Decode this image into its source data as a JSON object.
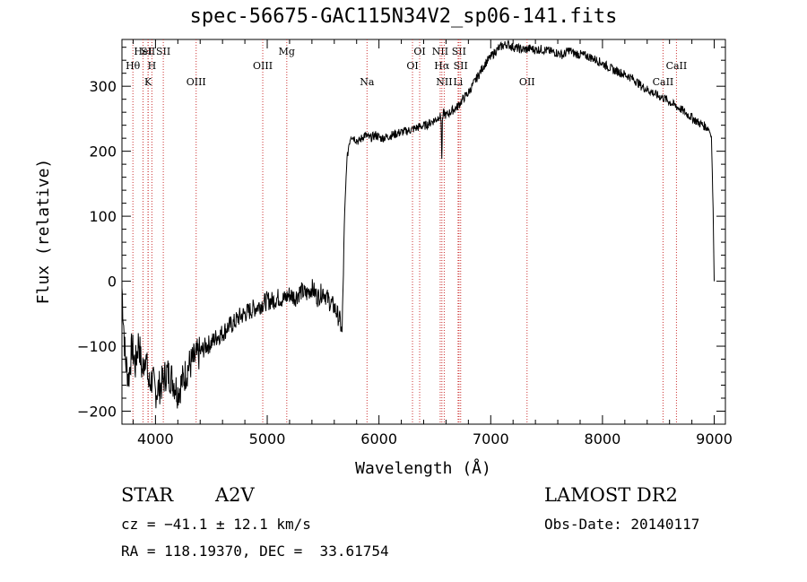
{
  "chart_data": {
    "type": "line",
    "title": "spec-56675-GAC115N34V2_sp06-141.fits",
    "xlabel": "Wavelength (Å)",
    "ylabel": "Flux (relative)",
    "xlim": [
      3700,
      9100
    ],
    "ylim": [
      -220,
      372
    ],
    "x_ticks": [
      4000,
      5000,
      6000,
      7000,
      8000,
      9000
    ],
    "y_ticks": [
      -200,
      -100,
      0,
      100,
      200,
      300
    ],
    "x_tick_labels": [
      "4000",
      "5000",
      "6000",
      "7000",
      "8000",
      "9000"
    ],
    "y_tick_labels": [
      "−200",
      "−100",
      "0",
      "100",
      "200",
      "300"
    ],
    "series": [
      {
        "color": "#000000",
        "x": [
          3700,
          3730,
          3760,
          3790,
          3820,
          3850,
          3880,
          3910,
          3940,
          3970,
          4000,
          4050,
          4100,
          4150,
          4200,
          4250,
          4300,
          4350,
          4400,
          4450,
          4500,
          4550,
          4600,
          4650,
          4700,
          4750,
          4800,
          4850,
          4900,
          4950,
          5000,
          5050,
          5100,
          5150,
          5200,
          5250,
          5300,
          5350,
          5400,
          5450,
          5500,
          5550,
          5600,
          5650,
          5670,
          5690,
          5710,
          5730,
          5750,
          5780,
          5820,
          5870,
          5920,
          5970,
          6020,
          6070,
          6120,
          6170,
          6220,
          6270,
          6320,
          6370,
          6420,
          6470,
          6520,
          6540,
          6556,
          6562,
          6568,
          6580,
          6600,
          6650,
          6700,
          6750,
          6800,
          6850,
          6900,
          6950,
          7000,
          7050,
          7100,
          7150,
          7200,
          7250,
          7300,
          7350,
          7400,
          7450,
          7500,
          7550,
          7600,
          7650,
          7700,
          7750,
          7800,
          7850,
          7900,
          7950,
          8000,
          8050,
          8100,
          8150,
          8200,
          8250,
          8300,
          8350,
          8400,
          8450,
          8500,
          8550,
          8600,
          8650,
          8700,
          8750,
          8800,
          8850,
          8900,
          8950,
          8975,
          8990,
          9000
        ],
        "y": [
          -10,
          -120,
          -150,
          -100,
          -130,
          -90,
          -140,
          -110,
          -160,
          -150,
          -170,
          -160,
          -140,
          -150,
          -170,
          -150,
          -130,
          -120,
          -110,
          -100,
          -95,
          -85,
          -80,
          -70,
          -65,
          -55,
          -50,
          -45,
          -40,
          -35,
          -30,
          -30,
          -25,
          -28,
          -20,
          -25,
          -15,
          -20,
          -10,
          -25,
          -15,
          -30,
          -40,
          -60,
          -80,
          80,
          180,
          210,
          225,
          220,
          215,
          225,
          220,
          225,
          220,
          222,
          225,
          228,
          230,
          232,
          235,
          238,
          240,
          245,
          250,
          255,
          250,
          185,
          245,
          260,
          255,
          262,
          268,
          280,
          290,
          305,
          320,
          335,
          345,
          355,
          362,
          365,
          360,
          358,
          356,
          358,
          356,
          357,
          355,
          353,
          351,
          348,
          356,
          350,
          349,
          347,
          344,
          340,
          335,
          330,
          325,
          322,
          318,
          314,
          308,
          300,
          295,
          290,
          285,
          282,
          276,
          270,
          265,
          258,
          252,
          245,
          240,
          235,
          222,
          110,
          0
        ]
      }
    ],
    "lines": [
      {
        "label": "Hθ",
        "x": 3798,
        "row": 2
      },
      {
        "label": "HeI",
        "x": 3889,
        "row": 1
      },
      {
        "label": "SII",
        "x": 3934,
        "row": 1
      },
      {
        "label": "H",
        "x": 3968,
        "row": 2
      },
      {
        "label": "K",
        "x": 3934,
        "row": 3
      },
      {
        "label": "SII",
        "x": 4070,
        "row": 1
      },
      {
        "label": "OIII",
        "x": 4364,
        "row": 3
      },
      {
        "label": "OIII",
        "x": 4960,
        "row": 2
      },
      {
        "label": "Mg",
        "x": 5175,
        "row": 1
      },
      {
        "label": "Na",
        "x": 5893,
        "row": 3
      },
      {
        "label": "OI",
        "x": 6300,
        "row": 2
      },
      {
        "label": "OI",
        "x": 6364,
        "row": 1
      },
      {
        "label": "NII",
        "x": 6548,
        "row": 1
      },
      {
        "label": "Hα",
        "x": 6563,
        "row": 2
      },
      {
        "label": "NII",
        "x": 6584,
        "row": 3
      },
      {
        "label": "SII",
        "x": 6716,
        "row": 1
      },
      {
        "label": "SII",
        "x": 6731,
        "row": 2
      },
      {
        "label": "Li",
        "x": 6708,
        "row": 3
      },
      {
        "label": "OII",
        "x": 7325,
        "row": 3
      },
      {
        "label": "CaII",
        "x": 8542,
        "row": 3
      },
      {
        "label": "CaII",
        "x": 8662,
        "row": 2
      }
    ],
    "grid": false,
    "line_marker_color": "#cc3333"
  },
  "info": {
    "object_class": "STAR",
    "subclass": "A2V",
    "survey": "LAMOST DR2",
    "cz": "cz = −41.1 ± 12.1 km/s",
    "obs_date": "Obs-Date: 20140117",
    "radec": "RA = 118.19370, DEC =  33.61754"
  }
}
